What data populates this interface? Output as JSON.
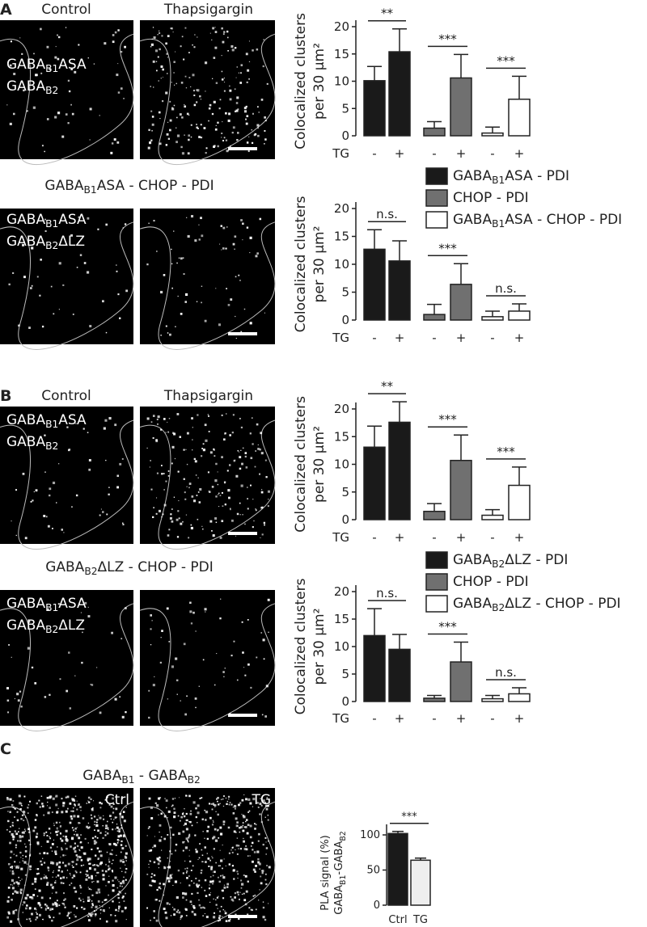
{
  "panels": [
    {
      "label": "A",
      "columns": [
        "Control",
        "Thapsigargin"
      ],
      "rows": [
        {
          "markers": [
            "GABAB1ASA",
            "GABAB2"
          ]
        },
        {
          "title": "GABAB1ASA - CHOP - PDI",
          "markers": [
            "GABAB1ASA",
            "GABAB2ΔLZ"
          ]
        }
      ]
    },
    {
      "label": "B",
      "columns": [
        "Control",
        "Thapsigargin"
      ],
      "rows": [
        {
          "markers": [
            "GABAB1ASA",
            "GABAB2"
          ]
        },
        {
          "title": "GABAB2ΔLZ - CHOP - PDI",
          "markers": [
            "GABAB1ASA",
            "GABAB2ΔLZ"
          ]
        }
      ]
    },
    {
      "label": "C",
      "title": "GABAB1 - GABAB2",
      "image_labels": [
        "Ctrl",
        "TG"
      ]
    }
  ],
  "chart_data": [
    {
      "type": "bar",
      "y_label": [
        "Colocalized clusters",
        "per 30 μm²"
      ],
      "x_label": "TG",
      "categories": [
        "-",
        "+"
      ],
      "ylim": [
        0,
        20
      ],
      "yticks": [
        0,
        5,
        10,
        15,
        20
      ],
      "series": [
        {
          "color": "#1a1a1a",
          "values": [
            10.1,
            15.4
          ],
          "errors": [
            2.6,
            4.2
          ],
          "significance": "**"
        },
        {
          "color": "#707070",
          "values": [
            1.4,
            10.6
          ],
          "errors": [
            1.2,
            4.3
          ],
          "significance": "***"
        },
        {
          "color": "#ffffff",
          "values": [
            0.5,
            6.7
          ],
          "errors": [
            1.1,
            4.2
          ],
          "significance": "***"
        }
      ]
    },
    {
      "type": "bar",
      "y_label": [
        "Colocalized clusters",
        "per 30 μm²"
      ],
      "x_label": "TG",
      "categories": [
        "-",
        "+"
      ],
      "ylim": [
        0,
        20
      ],
      "yticks": [
        0,
        5,
        10,
        15,
        20
      ],
      "series": [
        {
          "name": "GABAB1ASA - PDI",
          "color": "#1a1a1a",
          "values": [
            12.7,
            10.6
          ],
          "errors": [
            3.5,
            3.6
          ],
          "significance": "n.s."
        },
        {
          "name": "CHOP - PDI",
          "color": "#707070",
          "values": [
            1.0,
            6.4
          ],
          "errors": [
            1.8,
            3.7
          ],
          "significance": "***"
        },
        {
          "name": "GABAB1ASA - CHOP - PDI",
          "color": "#ffffff",
          "values": [
            0.6,
            1.6
          ],
          "errors": [
            1.0,
            1.3
          ],
          "significance": "n.s."
        }
      ]
    },
    {
      "type": "bar",
      "y_label": [
        "Colocalized clusters",
        "per 30 μm²"
      ],
      "x_label": "TG",
      "categories": [
        "-",
        "+"
      ],
      "ylim": [
        0,
        20
      ],
      "yticks": [
        0,
        5,
        10,
        15,
        20
      ],
      "series": [
        {
          "color": "#1a1a1a",
          "values": [
            13.1,
            17.6
          ],
          "errors": [
            3.8,
            3.7
          ],
          "significance": "**"
        },
        {
          "color": "#707070",
          "values": [
            1.5,
            10.7
          ],
          "errors": [
            1.4,
            4.6
          ],
          "significance": "***"
        },
        {
          "color": "#ffffff",
          "values": [
            0.8,
            6.2
          ],
          "errors": [
            1.0,
            3.3
          ],
          "significance": "***"
        }
      ]
    },
    {
      "type": "bar",
      "y_label": [
        "Colocalized clusters",
        "per 30 μm²"
      ],
      "x_label": "TG",
      "categories": [
        "-",
        "+"
      ],
      "ylim": [
        0,
        20
      ],
      "yticks": [
        0,
        5,
        10,
        15,
        20
      ],
      "series": [
        {
          "name": "GABAB2ΔLZ - PDI",
          "color": "#1a1a1a",
          "values": [
            12.0,
            9.5
          ],
          "errors": [
            4.9,
            2.7
          ],
          "significance": "n.s."
        },
        {
          "name": "CHOP - PDI",
          "color": "#707070",
          "values": [
            0.6,
            7.2
          ],
          "errors": [
            0.5,
            3.6
          ],
          "significance": "***"
        },
        {
          "name": "GABAB2ΔLZ - CHOP - PDI",
          "color": "#ffffff",
          "values": [
            0.5,
            1.4
          ],
          "errors": [
            0.6,
            1.1
          ],
          "significance": "n.s."
        }
      ]
    },
    {
      "type": "simplebar",
      "y_label": [
        "PLA signal (%)",
        "GABAB1-GABAB2"
      ],
      "categories": [
        "Ctrl",
        "TG"
      ],
      "values": [
        102,
        64
      ],
      "errors": [
        3,
        3
      ],
      "colors": [
        "#1a1a1a",
        "#eeeeee"
      ],
      "significance": "***",
      "ylim": [
        0,
        115
      ],
      "yticks": [
        0,
        50,
        100
      ]
    }
  ]
}
